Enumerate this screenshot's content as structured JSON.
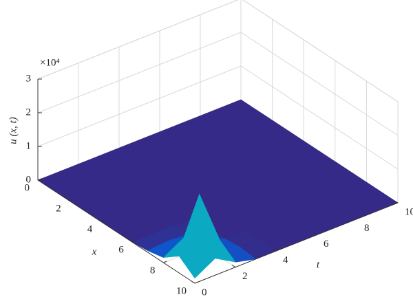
{
  "chart_data": {
    "type": "surface",
    "x_label": "x",
    "y_label": "t",
    "z_label": "u (x, t)",
    "z_multiplier": "×10⁴",
    "x": [
      0,
      1,
      2,
      3,
      4,
      5,
      6,
      7,
      8,
      9,
      10
    ],
    "y": [
      0,
      1,
      2,
      3,
      4,
      5,
      6,
      7,
      8,
      9,
      10
    ],
    "z": [
      [
        0,
        0,
        0,
        0,
        0,
        0,
        0,
        0,
        0,
        0,
        0
      ],
      [
        0,
        0,
        0,
        0,
        0,
        0,
        0,
        0,
        0,
        0,
        0
      ],
      [
        0,
        0,
        0,
        0,
        0,
        0,
        0,
        0,
        0,
        0,
        0
      ],
      [
        0,
        0,
        0,
        0,
        0,
        0,
        0,
        0,
        0,
        0,
        0
      ],
      [
        0,
        0,
        0,
        0,
        0,
        0,
        0,
        0,
        0,
        0,
        0
      ],
      [
        0,
        0,
        0,
        0,
        0,
        0,
        0,
        0,
        0,
        0,
        0
      ],
      [
        0,
        0,
        0,
        0,
        0,
        0,
        0,
        0,
        0,
        0,
        0
      ],
      [
        0.05,
        0.1,
        0.05,
        0,
        0,
        0,
        0,
        0,
        0,
        0,
        0
      ],
      [
        0.15,
        0.5,
        0.15,
        0,
        0,
        0,
        0,
        0,
        0,
        0,
        0
      ],
      [
        0.5,
        2.1,
        0.5,
        0.05,
        0,
        0,
        0,
        0,
        0,
        0,
        0
      ],
      [
        0.15,
        0.5,
        0.15,
        0,
        0,
        0,
        0,
        0,
        0,
        0,
        0
      ]
    ],
    "xlim": [
      0,
      10
    ],
    "ylim": [
      0,
      10
    ],
    "zlim": [
      0,
      3
    ],
    "xticks": [
      0,
      2,
      4,
      6,
      8,
      10
    ],
    "yticks": [
      0,
      2,
      4,
      6,
      8,
      10
    ],
    "zticks": [
      0,
      1,
      2,
      3
    ],
    "grid": true,
    "colormap": [
      "#352a87",
      "#0363e1",
      "#1485d4",
      "#06a7c6",
      "#38b99e",
      "#92bf73",
      "#d9ba56",
      "#fcce2e",
      "#f9fb0e"
    ]
  }
}
